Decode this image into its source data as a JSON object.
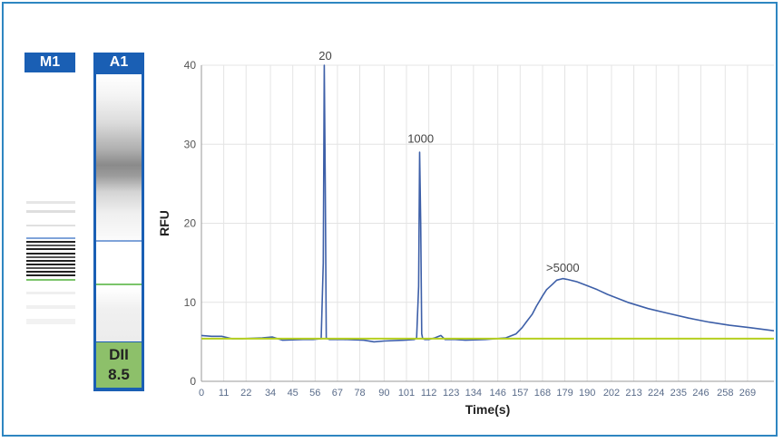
{
  "lanes": {
    "marker_label": "M1",
    "sample_label": "A1",
    "dii_label": "DII",
    "dii_value": "8.5"
  },
  "colors": {
    "frame": "#2e86c1",
    "lane_header": "#1a5fb4",
    "dii_box": "#8dc06a",
    "trace": "#3d5fa8",
    "baseline": "#b5cf1f",
    "grid": "#e4e4e4"
  },
  "chart_data": {
    "type": "line",
    "ylabel": "RFU",
    "xlabel": "Time(s)",
    "xlim": [
      0,
      282
    ],
    "ylim": [
      0,
      40
    ],
    "y_ticks": [
      0,
      10,
      20,
      30,
      40
    ],
    "x_ticks": [
      0,
      11,
      22,
      34,
      45,
      56,
      67,
      78,
      90,
      101,
      112,
      123,
      134,
      146,
      157,
      168,
      179,
      190,
      202,
      213,
      224,
      235,
      246,
      258,
      269
    ],
    "grid": true,
    "annotations": [
      {
        "text": "20",
        "x": 61,
        "y": 40
      },
      {
        "text": "1000",
        "x": 108,
        "y": 29.5
      },
      {
        "text": ">5000",
        "x": 178,
        "y": 13.2
      }
    ],
    "series": [
      {
        "x": [
          0,
          5,
          10,
          15,
          20,
          30,
          35,
          40,
          50,
          55,
          59,
          60,
          60.5,
          61,
          61.5,
          62,
          63,
          65,
          70,
          80,
          85,
          90,
          100,
          105,
          106,
          107,
          107.5,
          108,
          108.5,
          109,
          110,
          112,
          115,
          118,
          120,
          125,
          130,
          140,
          145,
          150,
          155,
          158,
          160,
          163,
          165,
          168,
          170,
          173,
          175,
          178,
          180,
          185,
          190,
          195,
          200,
          210,
          220,
          230,
          240,
          250,
          260,
          270,
          282
        ],
        "y": [
          5.8,
          5.7,
          5.7,
          5.4,
          5.4,
          5.5,
          5.6,
          5.2,
          5.3,
          5.3,
          5.4,
          15.0,
          40.0,
          25.0,
          5.5,
          5.4,
          5.3,
          5.3,
          5.3,
          5.2,
          5.0,
          5.1,
          5.2,
          5.3,
          5.5,
          12.0,
          29.0,
          20.0,
          6.0,
          5.4,
          5.3,
          5.3,
          5.5,
          5.8,
          5.3,
          5.3,
          5.2,
          5.3,
          5.4,
          5.5,
          6.0,
          6.8,
          7.5,
          8.5,
          9.5,
          10.8,
          11.6,
          12.3,
          12.8,
          13.0,
          12.9,
          12.6,
          12.1,
          11.6,
          11.0,
          10.0,
          9.2,
          8.6,
          8.0,
          7.5,
          7.1,
          6.8,
          6.4
        ]
      },
      {
        "x": [
          0,
          282
        ],
        "y": [
          5.4,
          5.4
        ]
      }
    ]
  }
}
